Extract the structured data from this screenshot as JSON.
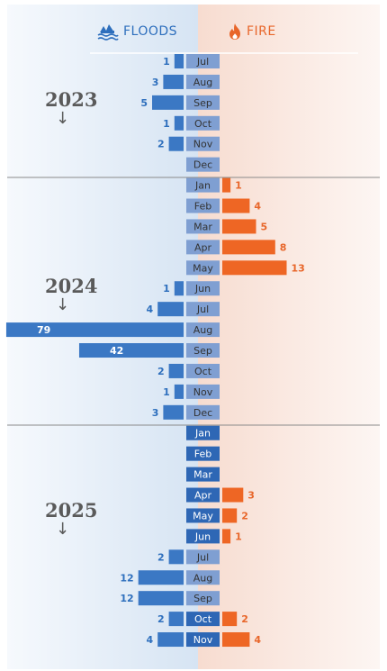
{
  "headers": {
    "floods": "FLOODS",
    "fire": "FIRE",
    "floods_icon": "flood-waves-icon",
    "fire_icon": "flame-icon"
  },
  "colors": {
    "floods": "#3b78c4",
    "fire": "#ee6624",
    "month_box": "#7f9fd2",
    "month_box_dark": "#2e67b5",
    "floods_text": "#2e6fbd",
    "fire_text": "#e8662a",
    "year_text": "#5a5a5a"
  },
  "years": [
    {
      "label": "2023",
      "arrow": "↓"
    },
    {
      "label": "2024",
      "arrow": "↓"
    },
    {
      "label": "2025",
      "arrow": "↓"
    }
  ],
  "chart_data": {
    "type": "bar",
    "orientation": "horizontal-diverging",
    "series": [
      {
        "name": "FLOODS"
      },
      {
        "name": "FIRE"
      }
    ],
    "rows": [
      {
        "year": "2023",
        "month": "Jul",
        "floods": 1,
        "fire": null
      },
      {
        "year": "2023",
        "month": "Aug",
        "floods": 3,
        "fire": null
      },
      {
        "year": "2023",
        "month": "Sep",
        "floods": 5,
        "fire": null
      },
      {
        "year": "2023",
        "month": "Oct",
        "floods": 1,
        "fire": null
      },
      {
        "year": "2023",
        "month": "Nov",
        "floods": 2,
        "fire": null
      },
      {
        "year": "2023",
        "month": "Dec",
        "floods": null,
        "fire": null
      },
      {
        "year": "2024",
        "month": "Jan",
        "floods": null,
        "fire": 1
      },
      {
        "year": "2024",
        "month": "Feb",
        "floods": null,
        "fire": 4
      },
      {
        "year": "2024",
        "month": "Mar",
        "floods": null,
        "fire": 5
      },
      {
        "year": "2024",
        "month": "Apr",
        "floods": null,
        "fire": 8
      },
      {
        "year": "2024",
        "month": "May",
        "floods": null,
        "fire": 13
      },
      {
        "year": "2024",
        "month": "Jun",
        "floods": 1,
        "fire": null
      },
      {
        "year": "2024",
        "month": "Jul",
        "floods": 4,
        "fire": null
      },
      {
        "year": "2024",
        "month": "Aug",
        "floods": 79,
        "fire": null
      },
      {
        "year": "2024",
        "month": "Sep",
        "floods": 42,
        "fire": null
      },
      {
        "year": "2024",
        "month": "Oct",
        "floods": 2,
        "fire": null
      },
      {
        "year": "2024",
        "month": "Nov",
        "floods": 1,
        "fire": null
      },
      {
        "year": "2024",
        "month": "Dec",
        "floods": 3,
        "fire": null
      },
      {
        "year": "2025",
        "month": "Jan",
        "floods": null,
        "fire": null
      },
      {
        "year": "2025",
        "month": "Feb",
        "floods": null,
        "fire": null
      },
      {
        "year": "2025",
        "month": "Mar",
        "floods": null,
        "fire": null
      },
      {
        "year": "2025",
        "month": "Apr",
        "floods": null,
        "fire": 3
      },
      {
        "year": "2025",
        "month": "May",
        "floods": null,
        "fire": 2
      },
      {
        "year": "2025",
        "month": "Jun",
        "floods": null,
        "fire": 1
      },
      {
        "year": "2025",
        "month": "Jul",
        "floods": 2,
        "fire": null
      },
      {
        "year": "2025",
        "month": "Aug",
        "floods": 12,
        "fire": null
      },
      {
        "year": "2025",
        "month": "Sep",
        "floods": 12,
        "fire": null
      },
      {
        "year": "2025",
        "month": "Oct",
        "floods": 2,
        "fire": 2
      },
      {
        "year": "2025",
        "month": "Nov",
        "floods": 4,
        "fire": 4
      }
    ],
    "legend": "top",
    "grid": false
  }
}
